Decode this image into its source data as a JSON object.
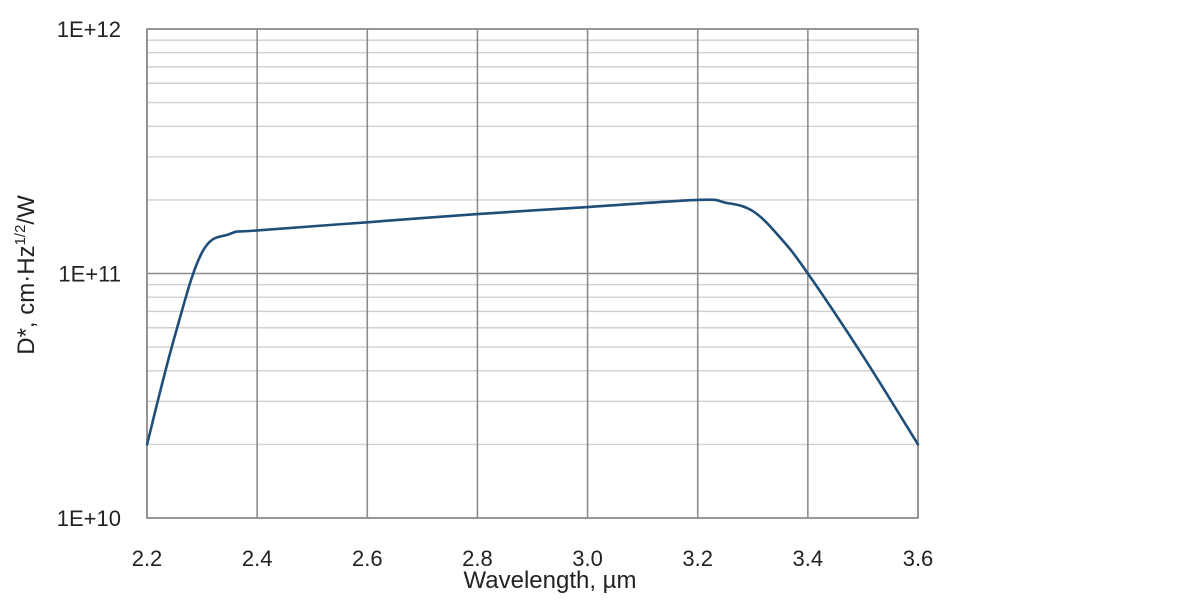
{
  "chart_data": {
    "type": "line",
    "xlabel": "Wavelength, µm",
    "ylabel": {
      "base": "D*, cm·Hz",
      "sup": "1/2",
      "tail": "/W"
    },
    "xlim": [
      2.2,
      3.6
    ],
    "ylim": [
      10000000000.0,
      1000000000000.0
    ],
    "y_scale": "log",
    "grid": true,
    "legend": "none",
    "x_ticks": [
      2.2,
      2.4,
      2.6,
      2.8,
      3.0,
      3.2,
      3.4,
      3.6
    ],
    "x_tick_labels": [
      "2.2",
      "2.4",
      "2.6",
      "2.8",
      "3.0",
      "3.2",
      "3.4",
      "3.6"
    ],
    "y_ticks": [
      10000000000.0,
      100000000000.0,
      1000000000000.0
    ],
    "y_tick_labels": [
      "1E+10",
      "1E+11",
      "1E+12"
    ],
    "series": [
      {
        "color": "#1f4e79",
        "x": [
          2.2,
          2.25,
          2.3,
          2.35,
          2.4,
          2.6,
          2.8,
          3.0,
          3.2,
          3.25,
          3.3,
          3.35,
          3.4,
          3.5,
          3.6
        ],
        "y": [
          20000000000.0,
          55000000000.0,
          122000000000.0,
          145000000000.0,
          150000000000.0,
          162000000000.0,
          175000000000.0,
          187000000000.0,
          200000000000.0,
          195000000000.0,
          180000000000.0,
          140000000000.0,
          100000000000.0,
          46000000000.0,
          20000000000.0
        ]
      }
    ],
    "colors": {
      "grid_major": "#8c8c8c",
      "grid_minor": "#d0d0d0",
      "frame": "#8c8c8c",
      "line": "#1f4e79"
    }
  }
}
